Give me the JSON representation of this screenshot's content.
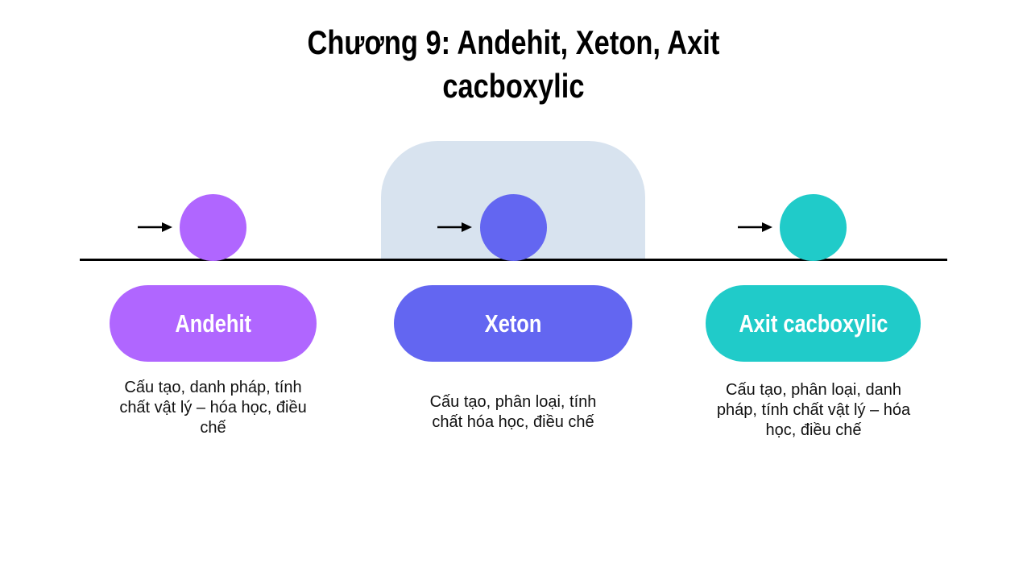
{
  "title": {
    "line1": "Chương 9: Andehit, Xeton, Axit",
    "line2": "cacboxylic"
  },
  "stages": [
    {
      "label": "Andehit",
      "color": "#b066ff",
      "description": "Cấu tạo, danh pháp, tính chất vật lý – hóa học, điều chế",
      "highlighted": false
    },
    {
      "label": "Xeton",
      "color": "#6366f1",
      "description": "Cấu tạo, phân loại, tính chất hóa học, điều chế",
      "highlighted": true
    },
    {
      "label": "Axit cacboxylic",
      "color": "#20cbc9",
      "description": "Cấu tạo, phân loại, danh pháp, tính chất vật lý – hóa học, điều chế",
      "highlighted": false
    }
  ],
  "colors": {
    "highlight_panel": "#d8e3ef",
    "timeline": "#000000"
  },
  "icons": {
    "arrow": "right-arrow-icon"
  }
}
